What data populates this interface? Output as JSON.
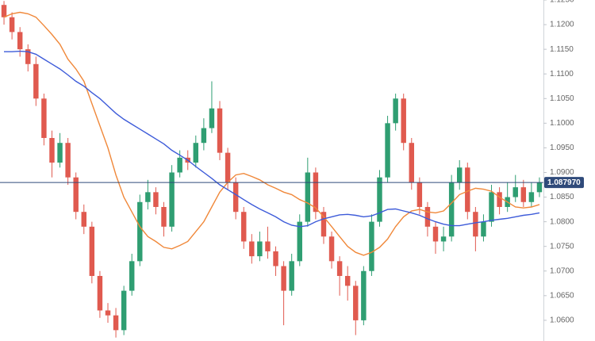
{
  "chart_data": {
    "type": "candlestick",
    "open": [
      1.124,
      1.1215,
      1.1185,
      1.115,
      1.112,
      1.105,
      1.097,
      1.092,
      1.096,
      1.089,
      1.082,
      1.079,
      1.069,
      1.062,
      1.061,
      1.058,
      1.066,
      1.072,
      1.084,
      1.086,
      1.083,
      1.079,
      1.09,
      1.093,
      1.092,
      1.096,
      1.099,
      1.103,
      1.094,
      1.088,
      1.082,
      1.076,
      1.073,
      1.076,
      1.074,
      1.071,
      1.066,
      1.072,
      1.08,
      1.09,
      1.082,
      1.077,
      1.072,
      1.069,
      1.067,
      1.06,
      1.07,
      1.08,
      1.089,
      1.1,
      1.105,
      1.096,
      1.088,
      1.083,
      1.079,
      1.076,
      1.077,
      1.088,
      1.091,
      1.082,
      1.077,
      1.08,
      1.086,
      1.083,
      1.085,
      1.087,
      1.084,
      1.086
    ],
    "high": [
      1.1248,
      1.1225,
      1.1195,
      1.116,
      1.1135,
      1.106,
      1.0985,
      1.098,
      1.097,
      1.09,
      1.0835,
      1.08,
      1.07,
      1.0635,
      1.0625,
      1.067,
      1.0735,
      1.0855,
      1.0885,
      1.087,
      1.084,
      1.0915,
      1.0945,
      1.0945,
      1.0975,
      1.101,
      1.1085,
      1.1045,
      1.095,
      1.089,
      1.083,
      1.0775,
      1.078,
      1.079,
      1.075,
      1.072,
      1.0735,
      1.0815,
      1.093,
      1.091,
      1.083,
      1.078,
      1.073,
      1.071,
      1.068,
      1.071,
      1.0815,
      1.0905,
      1.1015,
      1.106,
      1.106,
      1.097,
      1.089,
      1.084,
      1.08,
      1.079,
      1.0895,
      1.0925,
      1.092,
      1.083,
      1.0815,
      1.0875,
      1.087,
      1.088,
      1.0895,
      1.0885,
      1.088,
      1.089
    ],
    "low": [
      1.12,
      1.117,
      1.1135,
      1.1105,
      1.1035,
      1.0955,
      1.089,
      1.091,
      1.0875,
      1.0805,
      1.0775,
      1.0675,
      1.0605,
      1.0595,
      1.0565,
      1.057,
      1.065,
      1.071,
      1.0825,
      1.0815,
      1.077,
      1.078,
      1.089,
      1.0905,
      1.091,
      1.0945,
      1.098,
      1.0925,
      1.0865,
      1.0805,
      1.0745,
      1.0715,
      1.072,
      1.0725,
      1.069,
      1.059,
      1.065,
      1.071,
      1.079,
      1.0805,
      1.0755,
      1.0705,
      1.065,
      1.064,
      1.057,
      1.059,
      1.069,
      1.079,
      1.088,
      1.0985,
      1.0945,
      1.0865,
      1.0815,
      1.077,
      1.0735,
      1.074,
      1.076,
      1.0865,
      1.0805,
      1.074,
      1.076,
      1.079,
      1.0815,
      1.082,
      1.084,
      1.083,
      1.083,
      1.085
    ],
    "close": [
      1.1215,
      1.1185,
      1.115,
      1.112,
      1.105,
      1.097,
      1.092,
      1.096,
      1.089,
      1.082,
      1.079,
      1.069,
      1.062,
      1.061,
      1.058,
      1.066,
      1.072,
      1.084,
      1.086,
      1.083,
      1.079,
      1.09,
      1.093,
      1.092,
      1.096,
      1.099,
      1.103,
      1.094,
      1.088,
      1.082,
      1.076,
      1.073,
      1.076,
      1.074,
      1.071,
      1.066,
      1.072,
      1.08,
      1.09,
      1.082,
      1.077,
      1.072,
      1.069,
      1.067,
      1.06,
      1.07,
      1.08,
      1.089,
      1.1,
      1.105,
      1.096,
      1.088,
      1.083,
      1.079,
      1.076,
      1.077,
      1.088,
      1.091,
      1.082,
      1.077,
      1.08,
      1.086,
      1.083,
      1.085,
      1.087,
      1.084,
      1.086,
      1.088
    ],
    "up_color": "#2f9e72",
    "down_color": "#e05a4f",
    "series": [
      {
        "color": "#f0883a",
        "values": [
          1.1215,
          1.1222,
          1.1225,
          1.1222,
          1.1215,
          1.1198,
          1.118,
          1.116,
          1.113,
          1.111,
          1.1085,
          1.104,
          1.0995,
          1.095,
          1.0895,
          1.085,
          1.082,
          1.079,
          1.077,
          1.076,
          1.0748,
          1.0745,
          1.0752,
          1.076,
          1.078,
          1.08,
          1.083,
          1.086,
          1.088,
          1.0895,
          1.0898,
          1.0892,
          1.0885,
          1.0875,
          1.0868,
          1.086,
          1.0855,
          1.0845,
          1.0838,
          1.0828,
          1.081,
          1.079,
          1.077,
          1.075,
          1.0738,
          1.0732,
          1.0738,
          1.0748,
          1.0765,
          1.079,
          1.081,
          1.0822,
          1.0825,
          1.082,
          1.0818,
          1.0822,
          1.0838,
          1.0855,
          1.0862,
          1.0868,
          1.0866,
          1.0862,
          1.085,
          1.084,
          1.083,
          1.0828,
          1.083,
          1.0835
        ]
      },
      {
        "color": "#3d5bd9",
        "values": [
          1.1145,
          1.1145,
          1.1146,
          1.1145,
          1.114,
          1.113,
          1.112,
          1.111,
          1.1098,
          1.1085,
          1.1075,
          1.1062,
          1.105,
          1.1035,
          1.102,
          1.1008,
          1.0998,
          1.0988,
          1.0978,
          1.0968,
          1.0958,
          1.0945,
          1.0935,
          1.0925,
          1.0912,
          1.09,
          1.0888,
          1.0875,
          1.0865,
          1.0855,
          1.0845,
          1.0835,
          1.0826,
          1.0818,
          1.081,
          1.08,
          1.0793,
          1.079,
          1.0792,
          1.08,
          1.0806,
          1.081,
          1.0814,
          1.0815,
          1.0813,
          1.081,
          1.0812,
          1.0818,
          1.0825,
          1.0826,
          1.0822,
          1.0818,
          1.0813,
          1.0806,
          1.08,
          1.0795,
          1.0792,
          1.0792,
          1.0795,
          1.0798,
          1.08,
          1.0803,
          1.0805,
          1.0807,
          1.081,
          1.0813,
          1.0815,
          1.0818
        ]
      }
    ],
    "ylim": [
      1.0558,
      1.125
    ],
    "yticks": [
      {
        "value": 1.125,
        "label": "1.1250"
      },
      {
        "value": 1.12,
        "label": "1.1200"
      },
      {
        "value": 1.115,
        "label": "1.1150"
      },
      {
        "value": 1.11,
        "label": "1.1100"
      },
      {
        "value": 1.105,
        "label": "1.1050"
      },
      {
        "value": 1.1,
        "label": "1.1000"
      },
      {
        "value": 1.095,
        "label": "1.0950"
      },
      {
        "value": 1.09,
        "label": "1.0900"
      },
      {
        "value": 1.085,
        "label": "1.0850"
      },
      {
        "value": 1.08,
        "label": "1.0800"
      },
      {
        "value": 1.075,
        "label": "1.0750"
      },
      {
        "value": 1.07,
        "label": "1.0700"
      },
      {
        "value": 1.065,
        "label": "1.0650"
      },
      {
        "value": 1.06,
        "label": "1.0600"
      }
    ],
    "last_price": {
      "value": 1.08797,
      "label": "1.087970"
    },
    "last_price_color": "#2f4a7a"
  }
}
